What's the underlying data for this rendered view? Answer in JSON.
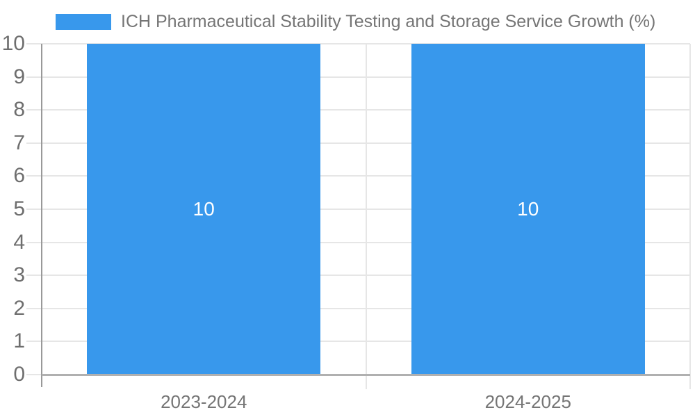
{
  "chart_data": {
    "type": "bar",
    "title": "ICH Pharmaceutical Stability Testing and Storage Service Growth (%)",
    "categories": [
      "2023-2024",
      "2024-2025"
    ],
    "values": [
      10,
      10
    ],
    "value_labels": [
      "10",
      "10"
    ],
    "ylim": [
      0,
      10
    ],
    "ytick_step": 1,
    "yticks": [
      0,
      1,
      2,
      3,
      4,
      5,
      6,
      7,
      8,
      9,
      10
    ],
    "xlabel": "",
    "ylabel": "",
    "grid": true,
    "legend_position": "top-left"
  },
  "colors": {
    "bar": "#3898EC",
    "grid": "#e6e6e6",
    "axis_line": "#999999",
    "baseline": "#b0b0b0",
    "tick_label": "#6e6e6e",
    "category_label": "#757575",
    "legend_label": "#757575",
    "value_label": "#ffffff",
    "background": "#ffffff"
  }
}
